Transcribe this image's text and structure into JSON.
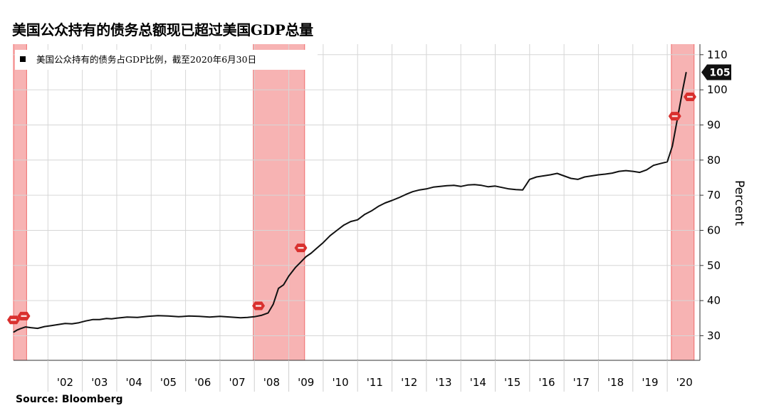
{
  "page": {
    "title": "美国公众持有的债务总额现已超过美国GDP总量",
    "source": "Source: Bloomberg"
  },
  "chart_data": {
    "type": "line",
    "title": "美国公众持有的债务总额现已超过美国GDP总量",
    "ylabel": "Percent",
    "xlabel": "",
    "ylim": [
      23,
      113
    ],
    "xlim": [
      2001.0,
      2020.95
    ],
    "yticks": [
      30,
      40,
      50,
      60,
      70,
      80,
      90,
      100,
      110
    ],
    "xtick_labels": [
      {
        "label": "'02",
        "x": 2002.5
      },
      {
        "label": "'03",
        "x": 2003.5
      },
      {
        "label": "'04",
        "x": 2004.5
      },
      {
        "label": "'05",
        "x": 2005.5
      },
      {
        "label": "'06",
        "x": 2006.5
      },
      {
        "label": "'07",
        "x": 2007.5
      },
      {
        "label": "'08",
        "x": 2008.5
      },
      {
        "label": "'09",
        "x": 2009.5
      },
      {
        "label": "'10",
        "x": 2010.5
      },
      {
        "label": "'11",
        "x": 2011.5
      },
      {
        "label": "'12",
        "x": 2012.5
      },
      {
        "label": "'13",
        "x": 2013.5
      },
      {
        "label": "'14",
        "x": 2014.5
      },
      {
        "label": "'15",
        "x": 2015.5
      },
      {
        "label": "'16",
        "x": 2016.5
      },
      {
        "label": "'17",
        "x": 2017.5
      },
      {
        "label": "'18",
        "x": 2018.5
      },
      {
        "label": "'19",
        "x": 2019.5
      },
      {
        "label": "'20",
        "x": 2020.5
      }
    ],
    "year_boundaries": [
      2002,
      2003,
      2004,
      2005,
      2006,
      2007,
      2008,
      2009,
      2010,
      2011,
      2012,
      2013,
      2014,
      2015,
      2016,
      2017,
      2018,
      2019,
      2020
    ],
    "recessions": [
      [
        2001.0,
        2001.38
      ],
      [
        2007.97,
        2009.46
      ],
      [
        2020.12,
        2020.78
      ]
    ],
    "recession_color": "#f7b3b3",
    "recession_edge_color": "#f06a6a",
    "line_color": "#111111",
    "grid": true,
    "legend_position": "top-left",
    "series": [
      {
        "name": "美国公众持有的债务占GDP比例，截至2020年6月30日",
        "x": [
          2001.0,
          2001.1,
          2001.2,
          2001.35,
          2001.5,
          2001.7,
          2001.9,
          2002.1,
          2002.3,
          2002.5,
          2002.7,
          2002.9,
          2003.1,
          2003.3,
          2003.5,
          2003.7,
          2003.85,
          2004.0,
          2004.3,
          2004.6,
          2004.9,
          2005.2,
          2005.5,
          2005.8,
          2006.1,
          2006.4,
          2006.7,
          2007.0,
          2007.3,
          2007.6,
          2007.8,
          2008.0,
          2008.2,
          2008.4,
          2008.55,
          2008.7,
          2008.85,
          2009.0,
          2009.2,
          2009.35,
          2009.5,
          2009.65,
          2009.8,
          2010.0,
          2010.2,
          2010.4,
          2010.6,
          2010.8,
          2011.0,
          2011.2,
          2011.4,
          2011.6,
          2011.8,
          2012.0,
          2012.2,
          2012.4,
          2012.6,
          2012.8,
          2013.0,
          2013.2,
          2013.4,
          2013.6,
          2013.8,
          2014.0,
          2014.2,
          2014.4,
          2014.6,
          2014.8,
          2015.0,
          2015.2,
          2015.4,
          2015.6,
          2015.8,
          2015.9,
          2016.0,
          2016.2,
          2016.4,
          2016.6,
          2016.8,
          2017.0,
          2017.2,
          2017.4,
          2017.6,
          2017.8,
          2018.0,
          2018.2,
          2018.4,
          2018.6,
          2018.8,
          2019.0,
          2019.2,
          2019.4,
          2019.6,
          2019.8,
          2020.0,
          2020.15,
          2020.3,
          2020.45,
          2020.55
        ],
        "values": [
          31.0,
          31.6,
          32.0,
          32.5,
          32.3,
          32.1,
          32.6,
          32.9,
          33.2,
          33.5,
          33.4,
          33.7,
          34.2,
          34.6,
          34.6,
          34.9,
          34.8,
          35.0,
          35.3,
          35.2,
          35.5,
          35.7,
          35.6,
          35.4,
          35.6,
          35.5,
          35.3,
          35.5,
          35.3,
          35.1,
          35.2,
          35.4,
          35.8,
          36.5,
          39.0,
          43.5,
          44.5,
          47.0,
          49.5,
          51.0,
          52.5,
          53.5,
          54.8,
          56.5,
          58.5,
          60.0,
          61.5,
          62.5,
          63.0,
          64.5,
          65.5,
          66.8,
          67.8,
          68.5,
          69.3,
          70.2,
          71.0,
          71.5,
          71.8,
          72.3,
          72.5,
          72.7,
          72.8,
          72.5,
          72.9,
          73.0,
          72.8,
          72.4,
          72.6,
          72.2,
          71.8,
          71.6,
          71.5,
          73.0,
          74.5,
          75.2,
          75.5,
          75.8,
          76.2,
          75.5,
          74.8,
          74.5,
          75.2,
          75.5,
          75.8,
          76.0,
          76.3,
          76.8,
          77.0,
          76.8,
          76.5,
          77.2,
          78.5,
          79.0,
          79.5,
          84.0,
          92.0,
          100.0,
          105.0
        ]
      }
    ],
    "callouts": [
      {
        "label": "105",
        "y": 105,
        "bg": "#111111",
        "fg": "#ffffff"
      }
    ],
    "recession_markers": [
      {
        "x": 2001.0,
        "y": 34.5
      },
      {
        "x": 2001.3,
        "y": 35.6
      },
      {
        "x": 2008.12,
        "y": 38.5
      },
      {
        "x": 2009.35,
        "y": 55.0
      },
      {
        "x": 2020.22,
        "y": 92.5
      },
      {
        "x": 2020.66,
        "y": 98.0
      }
    ]
  }
}
